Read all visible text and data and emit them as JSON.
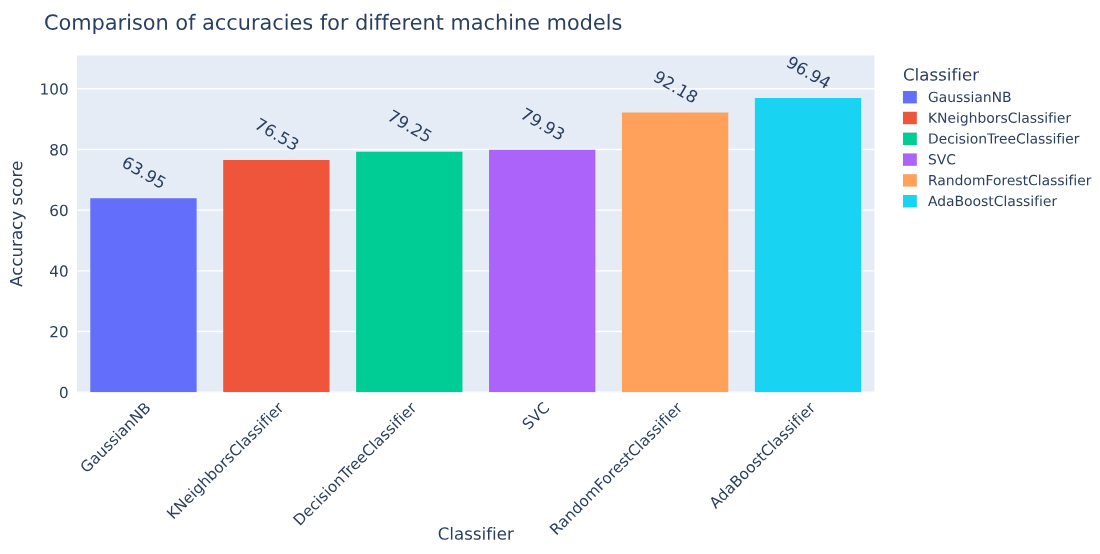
{
  "chart_data": {
    "type": "bar",
    "title": "Comparison of accuracies for different machine models",
    "xlabel": "Classifier",
    "ylabel": "Accuracy score",
    "legend_title": "Classifier",
    "categories": [
      "GaussianNB",
      "KNeighborsClassifier",
      "DecisionTreeClassifier",
      "SVC",
      "RandomForestClassifier",
      "AdaBoostClassifier"
    ],
    "series": [
      {
        "name": "GaussianNB",
        "color": "#636efa",
        "values": [
          63.95,
          null,
          null,
          null,
          null,
          null
        ]
      },
      {
        "name": "KNeighborsClassifier",
        "color": "#ef553b",
        "values": [
          null,
          76.53,
          null,
          null,
          null,
          null
        ]
      },
      {
        "name": "DecisionTreeClassifier",
        "color": "#00cc96",
        "values": [
          null,
          null,
          79.25,
          null,
          null,
          null
        ]
      },
      {
        "name": "SVC",
        "color": "#ab63fa",
        "values": [
          null,
          null,
          null,
          79.93,
          null,
          null
        ]
      },
      {
        "name": "RandomForestClassifier",
        "color": "#ffa15a",
        "values": [
          null,
          null,
          null,
          null,
          92.18,
          null
        ]
      },
      {
        "name": "AdaBoostClassifier",
        "color": "#19d3f3",
        "values": [
          null,
          null,
          null,
          null,
          null,
          96.94
        ]
      }
    ],
    "ylim": [
      0,
      111
    ],
    "yticks": [
      0,
      20,
      40,
      60,
      80,
      100
    ],
    "grid": "y",
    "legend": "right",
    "data_labels": true
  }
}
